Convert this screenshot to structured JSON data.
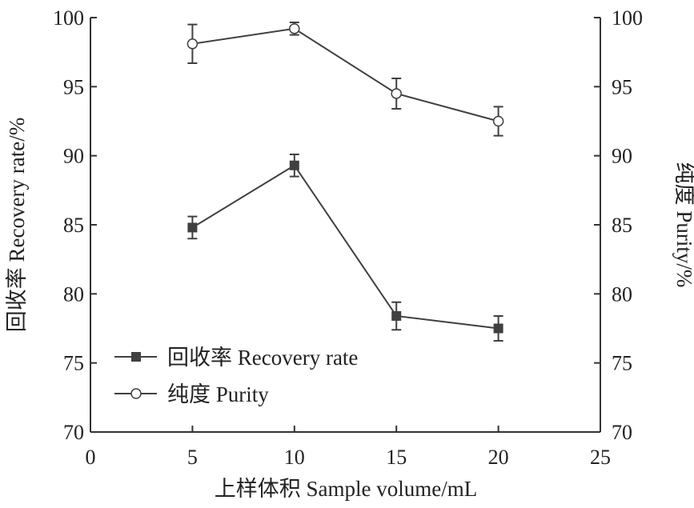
{
  "chart_data": {
    "type": "line",
    "title": "",
    "xlabel": "上样体积 Sample volume/mL",
    "ylabel": "回收率 Recovery rate/%",
    "y2label": "纯度 Purity/%",
    "xlim": [
      0,
      25
    ],
    "ylim": [
      70,
      100
    ],
    "y2lim": [
      70,
      100
    ],
    "xticks": [
      0,
      5,
      10,
      15,
      20,
      25
    ],
    "yticks": [
      70,
      75,
      80,
      85,
      90,
      95,
      100
    ],
    "grid": false,
    "legend_position": "bottom-left",
    "x": [
      5,
      10,
      15,
      20
    ],
    "series": [
      {
        "name": "回收率 Recovery rate",
        "marker": "filled-square",
        "axis": "left",
        "values": [
          84.8,
          89.3,
          78.4,
          77.5
        ],
        "errors": [
          0.8,
          0.8,
          1.0,
          0.9
        ]
      },
      {
        "name": "纯度 Purity",
        "marker": "open-circle",
        "axis": "right",
        "values": [
          98.1,
          99.2,
          94.5,
          92.5
        ],
        "errors": [
          1.4,
          0.45,
          1.1,
          1.05
        ]
      }
    ],
    "colors": {
      "line": "#404040",
      "marker": "#404040"
    }
  }
}
